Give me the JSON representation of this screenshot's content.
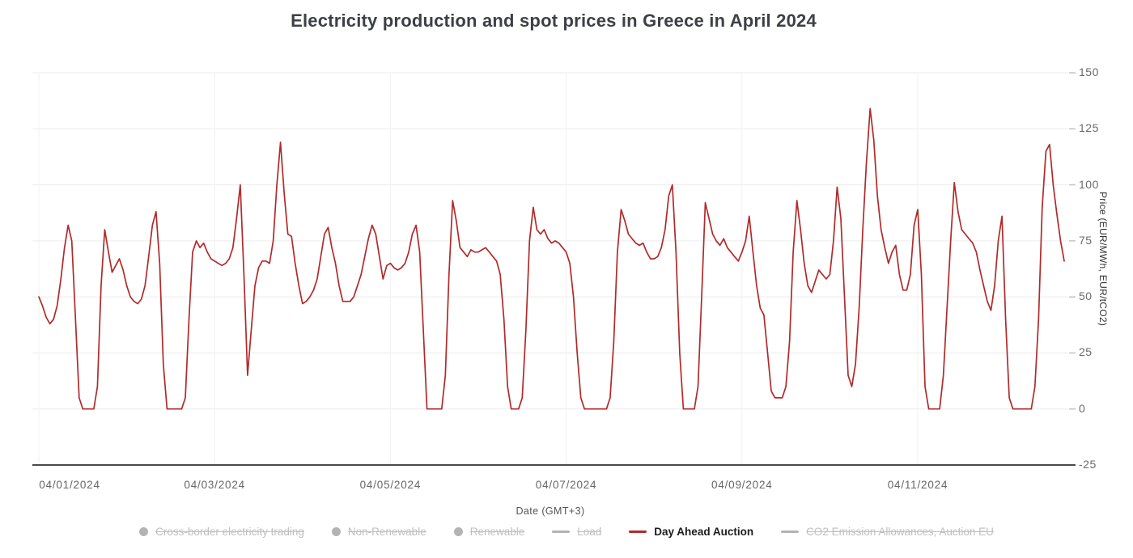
{
  "title": "Electricity production and spot prices in Greece in April 2024",
  "chart_data": {
    "type": "line",
    "title": "Electricity production and spot prices in Greece in April 2024",
    "xlabel": "Date (GMT+3)",
    "ylabel": "Price (EUR/MWh, EUR/tCO2)",
    "ylim": [
      -25,
      150
    ],
    "y_ticks": [
      150,
      125,
      100,
      75,
      50,
      25,
      0,
      -25
    ],
    "x_tick_labels": [
      "04/01/2024",
      "04/03/2024",
      "04/05/2024",
      "04/07/2024",
      "04/09/2024",
      "04/11/2024"
    ],
    "x_tick_day_offsets": [
      0,
      2,
      4,
      6,
      8,
      10
    ],
    "points_per_day": 24,
    "grid": "light-horizontal-and-vertical",
    "legend_position": "bottom",
    "series": [
      {
        "name": "Day Ahead Auction",
        "color": "#b12a2a",
        "visible": true,
        "unit": "EUR/MWh",
        "start_label": "04/01/2024",
        "values": [
          50,
          46,
          41,
          38,
          40,
          46,
          58,
          72,
          82,
          75,
          40,
          5,
          0,
          0,
          0,
          0,
          10,
          55,
          80,
          70,
          61,
          64,
          67,
          62,
          55,
          50,
          48,
          47,
          49,
          55,
          68,
          82,
          88,
          65,
          20,
          0,
          0,
          0,
          0,
          0,
          5,
          40,
          70,
          75,
          72,
          74,
          70,
          67,
          66,
          65,
          64,
          65,
          67,
          72,
          85,
          100,
          60,
          15,
          35,
          55,
          63,
          66,
          66,
          65,
          75,
          100,
          119,
          96,
          78,
          77,
          65,
          55,
          47,
          48,
          50,
          53,
          58,
          68,
          78,
          81,
          72,
          65,
          55,
          48,
          48,
          48,
          50,
          55,
          60,
          68,
          76,
          82,
          78,
          68,
          58,
          64,
          65,
          63,
          62,
          63,
          65,
          70,
          78,
          82,
          70,
          35,
          0,
          0,
          0,
          0,
          0,
          15,
          60,
          93,
          84,
          72,
          70,
          68,
          71,
          70,
          70,
          71,
          72,
          70,
          68,
          66,
          60,
          40,
          10,
          0,
          0,
          0,
          5,
          35,
          75,
          90,
          80,
          78,
          80,
          76,
          74,
          75,
          74,
          72,
          70,
          65,
          50,
          25,
          5,
          0,
          0,
          0,
          0,
          0,
          0,
          0,
          5,
          30,
          70,
          89,
          84,
          78,
          76,
          74,
          73,
          74,
          70,
          67,
          67,
          68,
          72,
          80,
          95,
          100,
          70,
          25,
          0,
          0,
          0,
          0,
          10,
          50,
          92,
          85,
          78,
          75,
          73,
          76,
          72,
          70,
          68,
          66,
          70,
          75,
          86,
          70,
          55,
          45,
          42,
          25,
          8,
          5,
          5,
          5,
          10,
          30,
          70,
          93,
          80,
          65,
          55,
          52,
          57,
          62,
          60,
          58,
          60,
          75,
          99,
          85,
          50,
          15,
          10,
          20,
          45,
          80,
          110,
          134,
          120,
          95,
          80,
          72,
          65,
          70,
          73,
          60,
          53,
          53,
          60,
          82,
          89,
          60,
          10,
          0,
          0,
          0,
          0,
          15,
          45,
          75,
          101,
          88,
          80,
          78,
          76,
          74,
          70,
          62,
          55,
          48,
          44,
          55,
          75,
          86,
          40,
          5,
          0,
          0,
          0,
          0,
          0,
          0,
          10,
          40,
          90,
          115,
          118,
          100,
          87,
          75,
          66
        ]
      },
      {
        "name": "Cross-border electricity trading",
        "visible": false
      },
      {
        "name": "Non-Renewable",
        "visible": false
      },
      {
        "name": "Renewable",
        "visible": false
      },
      {
        "name": "Load",
        "visible": false
      },
      {
        "name": "CO2 Emission Allowances, Auction EU",
        "visible": false
      }
    ],
    "legend": [
      {
        "label": "Cross-border electricity trading",
        "marker": "circle",
        "color": "#b3b3b3",
        "enabled": false
      },
      {
        "label": "Non-Renewable",
        "marker": "circle",
        "color": "#b3b3b3",
        "enabled": false
      },
      {
        "label": "Renewable",
        "marker": "circle",
        "color": "#b3b3b3",
        "enabled": false
      },
      {
        "label": "Load",
        "marker": "line",
        "color": "#b3b3b3",
        "enabled": false
      },
      {
        "label": "Day Ahead Auction",
        "marker": "line",
        "color": "#b12a2a",
        "enabled": true
      },
      {
        "label": "CO2 Emission Allowances, Auction EU",
        "marker": "line",
        "color": "#b3b3b3",
        "enabled": false
      }
    ],
    "colors": {
      "line": "#b12a2a",
      "grid": "#ececec",
      "axis_line": "#4a4a4a",
      "tick_text": "#6b6b6b",
      "title_text": "#3d4045"
    }
  }
}
